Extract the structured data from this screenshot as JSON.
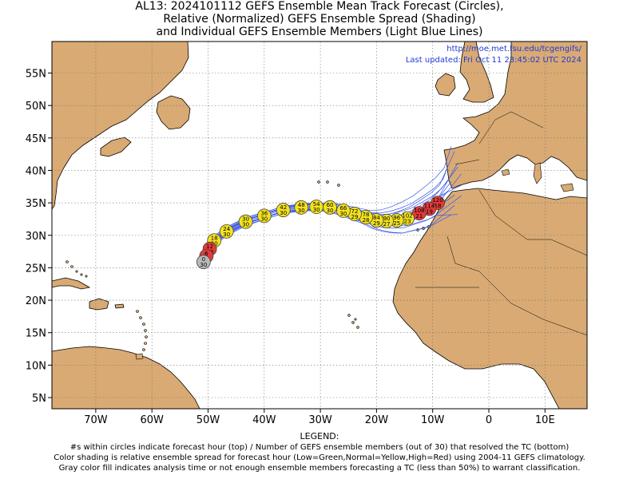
{
  "title_lines": [
    "AL13: 2024101112 GEFS Ensemble Mean Track Forecast (Circles),",
    "Relative (Normalized) GEFS Ensemble Spread (Shading)",
    "and Individual GEFS Ensemble Members (Light Blue Lines)"
  ],
  "source_url": "http://moe.met.fsu.edu/tcgengifs/",
  "last_updated": "Last updated: Fri Oct 11 23:45:02 UTC 2024",
  "lat_labels": [
    "55N",
    "50N",
    "45N",
    "40N",
    "35N",
    "30N",
    "25N",
    "20N",
    "15N",
    "10N",
    "5N"
  ],
  "lon_labels": [
    "70W",
    "60W",
    "50W",
    "40W",
    "30W",
    "20W",
    "10W",
    "0",
    "10E"
  ],
  "legend": {
    "heading": "LEGEND:",
    "lines": [
      "#s within circles indicate forecast hour (top) / Number of GEFS ensemble members (out of 30) that resolved the TC (bottom)",
      "Color shading is relative ensemble spread for forecast hour (Low=Green,Normal=Yellow,High=Red) using 2004-11 GEFS climatology.",
      "Gray color fill indicates analysis time or not enough ensemble members forecasting a TC (less than 50%) to warrant classification."
    ]
  },
  "colors": {
    "land": "#d9aa73",
    "ocean": "#ffffff",
    "member_track": "#3a57e8",
    "spread_low": "#22c55e",
    "spread_normal": "#f2e21f",
    "spread_high": "#e43a3a",
    "analysis": "#b8b8b8"
  },
  "track_points": [
    {
      "hour": "0",
      "members": "30",
      "lon": -50.8,
      "lat": 25.9,
      "spread": "analysis"
    },
    {
      "hour": "6",
      "members": "30",
      "lon": -50.3,
      "lat": 26.8,
      "spread": "high"
    },
    {
      "hour": "12",
      "members": "30",
      "lon": -49.7,
      "lat": 27.9,
      "spread": "high"
    },
    {
      "hour": "18",
      "members": "30",
      "lon": -48.9,
      "lat": 29.2,
      "spread": "normal"
    },
    {
      "hour": "24",
      "members": "30",
      "lon": -46.7,
      "lat": 30.6,
      "spread": "normal"
    },
    {
      "hour": "30",
      "members": "30",
      "lon": -43.3,
      "lat": 32.1,
      "spread": "normal"
    },
    {
      "hour": "36",
      "members": "30",
      "lon": -40.0,
      "lat": 33.0,
      "spread": "normal"
    },
    {
      "hour": "42",
      "members": "30",
      "lon": -36.6,
      "lat": 33.9,
      "spread": "normal"
    },
    {
      "hour": "48",
      "members": "30",
      "lon": -33.4,
      "lat": 34.3,
      "spread": "normal"
    },
    {
      "hour": "54",
      "members": "30",
      "lon": -30.7,
      "lat": 34.4,
      "spread": "normal"
    },
    {
      "hour": "60",
      "members": "30",
      "lon": -28.3,
      "lat": 34.3,
      "spread": "normal"
    },
    {
      "hour": "66",
      "members": "30",
      "lon": -25.9,
      "lat": 33.8,
      "spread": "normal"
    },
    {
      "hour": "72",
      "members": "29",
      "lon": -23.9,
      "lat": 33.3,
      "spread": "normal"
    },
    {
      "hour": "78",
      "members": "28",
      "lon": -21.9,
      "lat": 32.8,
      "spread": "normal"
    },
    {
      "hour": "84",
      "members": "29",
      "lon": -20.0,
      "lat": 32.3,
      "spread": "normal"
    },
    {
      "hour": "90",
      "members": "27",
      "lon": -18.2,
      "lat": 32.2,
      "spread": "normal"
    },
    {
      "hour": "96",
      "members": "25",
      "lon": -16.4,
      "lat": 32.3,
      "spread": "normal"
    },
    {
      "hour": "102",
      "members": "23",
      "lon": -14.5,
      "lat": 32.6,
      "spread": "normal"
    },
    {
      "hour": "108",
      "members": "21",
      "lon": -12.4,
      "lat": 33.4,
      "spread": "high"
    },
    {
      "hour": "114",
      "members": "19",
      "lon": -10.6,
      "lat": 34.1,
      "spread": "high"
    },
    {
      "hour": "120",
      "members": "18",
      "lon": -9.1,
      "lat": 35.0,
      "spread": "high"
    }
  ]
}
